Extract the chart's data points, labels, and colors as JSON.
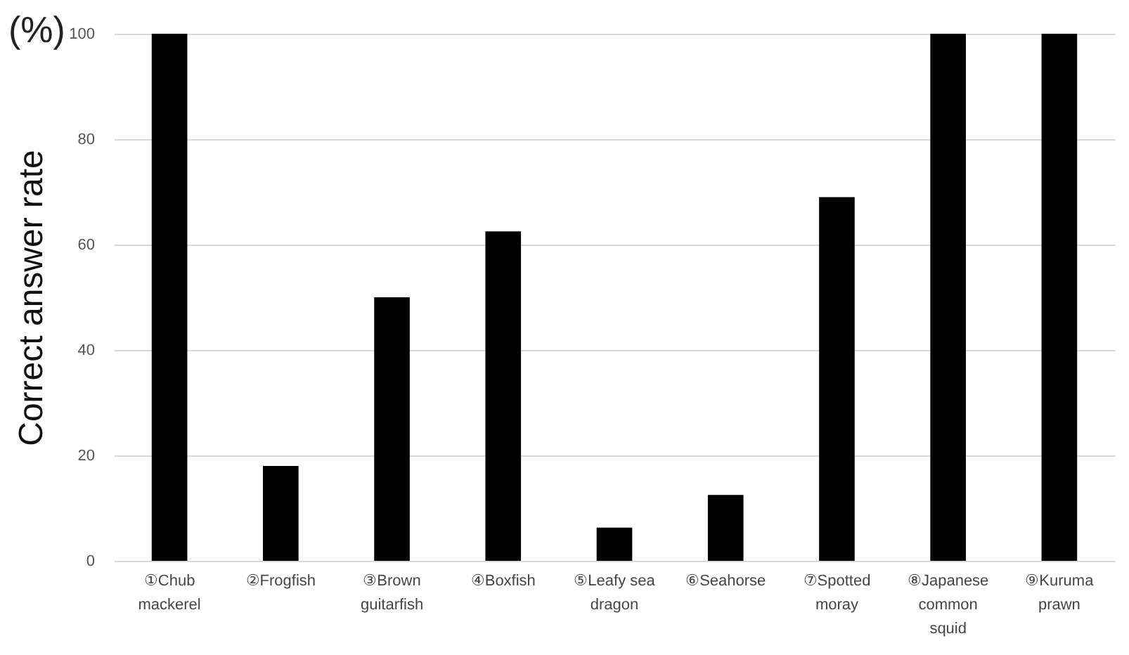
{
  "chart_data": {
    "type": "bar",
    "ylabel": "Correct  answer rate",
    "annotations": [
      "(%)"
    ],
    "categories": [
      "①Chub mackerel",
      "②Frogfish",
      "③Brown guitarfish",
      "④Boxfish",
      "⑤Leafy sea dragon",
      "⑥Seahorse",
      "⑦Spotted moray",
      "⑧Japanese common squid",
      "⑨Kuruma prawn"
    ],
    "values": [
      100,
      18,
      50,
      62.5,
      6.3,
      12.5,
      69,
      100,
      100
    ],
    "color": "#000000",
    "ylim": [
      0,
      100
    ],
    "yticks": [
      0,
      20,
      40,
      60,
      80,
      100
    ],
    "grid": "y"
  }
}
